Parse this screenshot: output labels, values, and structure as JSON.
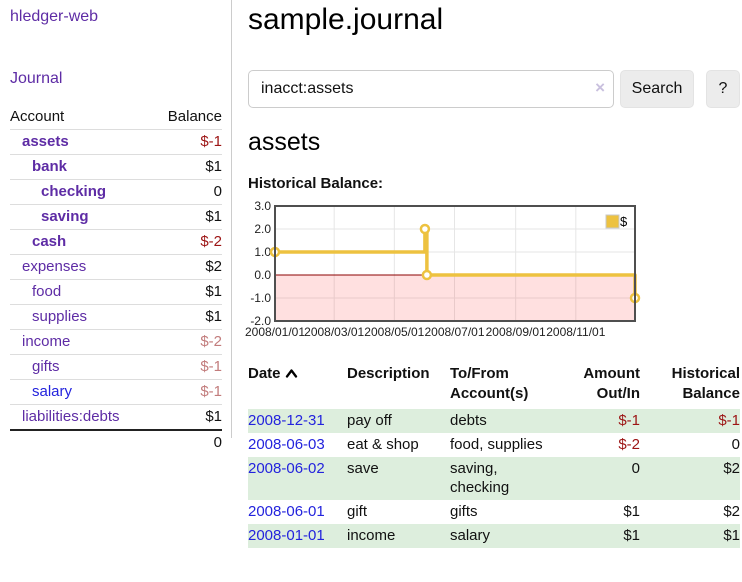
{
  "app": {
    "title": "hledger-web",
    "nav_journal": "Journal"
  },
  "sidebar": {
    "headers": {
      "account": "Account",
      "balance": "Balance"
    },
    "accounts": [
      {
        "name": "assets",
        "balance": "$-1"
      },
      {
        "name": "bank",
        "balance": "$1"
      },
      {
        "name": "checking",
        "balance": "0"
      },
      {
        "name": "saving",
        "balance": "$1"
      },
      {
        "name": "cash",
        "balance": "$-2"
      },
      {
        "name": "expenses",
        "balance": "$2"
      },
      {
        "name": "food",
        "balance": "$1"
      },
      {
        "name": "supplies",
        "balance": "$1"
      },
      {
        "name": "income",
        "balance": "$-2"
      },
      {
        "name": "gifts",
        "balance": "$-1"
      },
      {
        "name": "salary",
        "balance": "$-1"
      },
      {
        "name": "liabilities:debts",
        "balance": "$1"
      }
    ],
    "total": "0"
  },
  "main": {
    "title": "sample.journal",
    "search": {
      "value": "inacct:assets",
      "clear_icon": "×",
      "search_button": "Search",
      "help_button": "?"
    },
    "account_title": "assets",
    "chart_title": "Historical Balance:"
  },
  "chart_data": {
    "type": "line",
    "step": true,
    "title": "Historical Balance",
    "series": [
      {
        "name": "$",
        "color": "#edc240",
        "points": [
          {
            "date": "2008-01-01",
            "day": 0,
            "value": 1
          },
          {
            "date": "2008-06-01",
            "day": 152,
            "value": 2
          },
          {
            "date": "2008-06-03",
            "day": 154,
            "value": 0
          },
          {
            "date": "2008-12-31",
            "day": 365,
            "value": -1
          }
        ]
      }
    ],
    "x_ticks": [
      {
        "day": 0,
        "label": "2008/01/01"
      },
      {
        "day": 60,
        "label": "2008/03/01"
      },
      {
        "day": 121,
        "label": "2008/05/01"
      },
      {
        "day": 182,
        "label": "2008/07/01"
      },
      {
        "day": 244,
        "label": "2008/09/01"
      },
      {
        "day": 305,
        "label": "2008/11/01"
      }
    ],
    "x_range_days": 365,
    "y_ticks": [
      3,
      2,
      1,
      0,
      -1,
      -2
    ],
    "ylim": [
      -2,
      3
    ],
    "grid": true,
    "legend_position": "top-right",
    "negative_region_color": "rgba(255,0,0,0.12)",
    "zero_line_color": "#8b0000"
  },
  "register": {
    "headers": {
      "date": "Date",
      "description": "Description",
      "account": "To/From Account(s)",
      "amount": "Amount Out/In",
      "balance": "Historical Balance"
    },
    "rows": [
      {
        "date": "2008-12-31",
        "description": "pay off",
        "accounts": "debts",
        "amount": "$-1",
        "balance": "$-1"
      },
      {
        "date": "2008-06-03",
        "description": "eat & shop",
        "accounts": "food, supplies",
        "amount": "$-2",
        "balance": "0"
      },
      {
        "date": "2008-06-02",
        "description": "save",
        "accounts": "saving, checking",
        "amount": "0",
        "balance": "$2"
      },
      {
        "date": "2008-06-01",
        "description": "gift",
        "accounts": "gifts",
        "amount": "$1",
        "balance": "$2"
      },
      {
        "date": "2008-01-01",
        "description": "income",
        "accounts": "salary",
        "amount": "$1",
        "balance": "$1"
      }
    ]
  },
  "colors": {
    "link_purple": "#5e2ca5",
    "link_blue": "#2323dd",
    "date_link_blue": "#2323cc",
    "negative_strong": "#9c1414",
    "negative_muted": "#c27c7c",
    "row_stripe": "#ddeedd",
    "series_gold": "#edc240"
  }
}
